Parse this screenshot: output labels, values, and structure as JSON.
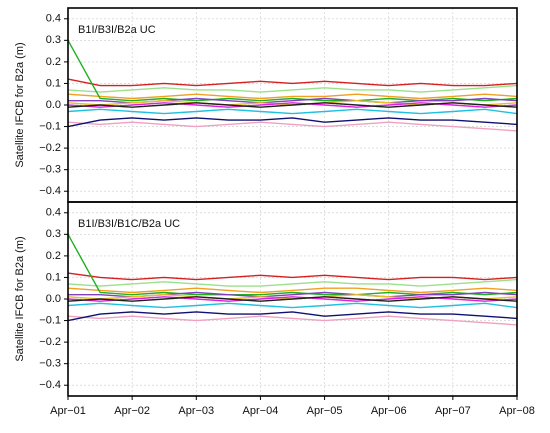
{
  "chart_data": [
    {
      "type": "line",
      "annotation": "B1I/B3I/B2a UC",
      "ylabel": "Satellite IFCB for B2a (m)",
      "x": [
        0,
        0.5,
        1,
        1.5,
        2,
        2.5,
        3,
        3.5,
        4,
        4.5,
        5,
        5.5,
        6,
        6.5,
        7
      ],
      "xlim": [
        0,
        7
      ],
      "ylim": [
        -0.45,
        0.45
      ],
      "yticks": [
        {
          "value": -0.4,
          "label": "−0.4"
        },
        {
          "value": -0.3,
          "label": "−0.3"
        },
        {
          "value": -0.2,
          "label": "−0.2"
        },
        {
          "value": -0.1,
          "label": "−0.1"
        },
        {
          "value": 0,
          "label": "0.0"
        },
        0.1,
        0.2,
        0.3,
        0.4
      ],
      "grid": true,
      "series": [
        {
          "color": "#d62020",
          "values": [
            0.12,
            0.09,
            0.09,
            0.1,
            0.09,
            0.1,
            0.11,
            0.1,
            0.11,
            0.1,
            0.09,
            0.1,
            0.09,
            0.09,
            0.1
          ]
        },
        {
          "color": "#9be08a",
          "values": [
            0.07,
            0.06,
            0.07,
            0.08,
            0.07,
            0.07,
            0.06,
            0.07,
            0.08,
            0.07,
            0.07,
            0.06,
            0.07,
            0.08,
            0.09
          ]
        },
        {
          "color": "#f0a020",
          "values": [
            0.05,
            0.04,
            0.03,
            0.04,
            0.05,
            0.04,
            0.03,
            0.04,
            0.04,
            0.05,
            0.04,
            0.03,
            0.04,
            0.05,
            0.04
          ]
        },
        {
          "color": "#20b020",
          "values": [
            0.3,
            0.03,
            0.02,
            0.03,
            0.02,
            0.03,
            0.02,
            0.03,
            0.02,
            0.02,
            0.03,
            0.02,
            0.03,
            0.02,
            0.03
          ]
        },
        {
          "color": "#8040c0",
          "values": [
            0.02,
            0.02,
            0.01,
            0.02,
            0.03,
            0.02,
            0.01,
            0.02,
            0.03,
            0.02,
            0.01,
            0.02,
            0.02,
            0.03,
            0.02
          ]
        },
        {
          "color": "#e8c020",
          "values": [
            0.01,
            0.0,
            0.01,
            0.02,
            0.01,
            0.0,
            0.01,
            0.0,
            0.01,
            0.02,
            0.01,
            0.0,
            0.01,
            0.0,
            0.01
          ]
        },
        {
          "color": "#e020e0",
          "values": [
            0.0,
            -0.01,
            0.0,
            0.01,
            0.0,
            -0.01,
            0.0,
            0.01,
            0.0,
            -0.01,
            0.0,
            0.01,
            0.0,
            -0.01,
            0.0
          ]
        },
        {
          "color": "#202020",
          "values": [
            -0.01,
            0.0,
            -0.01,
            0.0,
            0.01,
            0.0,
            -0.01,
            0.0,
            0.01,
            0.0,
            -0.01,
            0.0,
            0.01,
            0.0,
            -0.01
          ]
        },
        {
          "color": "#20c0e0",
          "values": [
            -0.03,
            -0.02,
            -0.03,
            -0.04,
            -0.03,
            -0.02,
            -0.03,
            -0.04,
            -0.03,
            -0.02,
            -0.03,
            -0.04,
            -0.03,
            -0.02,
            -0.04
          ]
        },
        {
          "color": "#f0a0c0",
          "values": [
            -0.08,
            -0.09,
            -0.08,
            -0.09,
            -0.1,
            -0.09,
            -0.08,
            -0.09,
            -0.1,
            -0.09,
            -0.08,
            -0.09,
            -0.1,
            -0.11,
            -0.12
          ]
        },
        {
          "color": "#101070",
          "values": [
            -0.1,
            -0.07,
            -0.06,
            -0.07,
            -0.06,
            -0.07,
            -0.07,
            -0.06,
            -0.08,
            -0.07,
            -0.06,
            -0.07,
            -0.07,
            -0.08,
            -0.09
          ]
        }
      ]
    },
    {
      "type": "line",
      "annotation": "B1I/B3I/B1C/B2a UC",
      "ylabel": "Satellite IFCB for B2a (m)",
      "x": [
        0,
        0.5,
        1,
        1.5,
        2,
        2.5,
        3,
        3.5,
        4,
        4.5,
        5,
        5.5,
        6,
        6.5,
        7
      ],
      "xlim": [
        0,
        7
      ],
      "ylim": [
        -0.45,
        0.45
      ],
      "xticks": [
        {
          "value": 0,
          "label": "Apr−01"
        },
        {
          "value": 1,
          "label": "Apr−02"
        },
        {
          "value": 2,
          "label": "Apr−03"
        },
        {
          "value": 3,
          "label": "Apr−04"
        },
        {
          "value": 4,
          "label": "Apr−05"
        },
        {
          "value": 5,
          "label": "Apr−06"
        },
        {
          "value": 6,
          "label": "Apr−07"
        },
        {
          "value": 7,
          "label": "Apr−08"
        }
      ],
      "yticks": [
        {
          "value": -0.4,
          "label": "−0.4"
        },
        {
          "value": -0.3,
          "label": "−0.3"
        },
        {
          "value": -0.2,
          "label": "−0.2"
        },
        {
          "value": -0.1,
          "label": "−0.1"
        },
        {
          "value": 0,
          "label": "0.0"
        },
        0.1,
        0.2,
        0.3,
        0.4
      ],
      "grid": true,
      "series": [
        {
          "color": "#d62020",
          "values": [
            0.12,
            0.1,
            0.09,
            0.1,
            0.09,
            0.1,
            0.11,
            0.1,
            0.11,
            0.1,
            0.09,
            0.1,
            0.1,
            0.09,
            0.1
          ]
        },
        {
          "color": "#9be08a",
          "values": [
            0.07,
            0.06,
            0.07,
            0.08,
            0.07,
            0.06,
            0.06,
            0.07,
            0.08,
            0.07,
            0.07,
            0.06,
            0.07,
            0.08,
            0.09
          ]
        },
        {
          "color": "#f0a020",
          "values": [
            0.05,
            0.04,
            0.03,
            0.04,
            0.05,
            0.04,
            0.03,
            0.04,
            0.05,
            0.05,
            0.04,
            0.03,
            0.04,
            0.05,
            0.04
          ]
        },
        {
          "color": "#20b020",
          "values": [
            0.3,
            0.03,
            0.02,
            0.03,
            0.02,
            0.02,
            0.02,
            0.03,
            0.02,
            0.02,
            0.03,
            0.02,
            0.03,
            0.02,
            0.03
          ]
        },
        {
          "color": "#8040c0",
          "values": [
            0.02,
            0.02,
            0.01,
            0.02,
            0.03,
            0.02,
            0.01,
            0.02,
            0.03,
            0.02,
            0.01,
            0.02,
            0.02,
            0.03,
            0.02
          ]
        },
        {
          "color": "#e8c020",
          "values": [
            0.01,
            0.0,
            0.01,
            0.02,
            0.01,
            0.0,
            0.01,
            0.0,
            0.01,
            0.02,
            0.01,
            0.0,
            0.01,
            0.0,
            0.01
          ]
        },
        {
          "color": "#e020e0",
          "values": [
            0.0,
            -0.01,
            0.0,
            0.01,
            0.0,
            -0.01,
            0.0,
            0.01,
            0.0,
            -0.01,
            0.0,
            0.01,
            0.0,
            -0.01,
            0.0
          ]
        },
        {
          "color": "#202020",
          "values": [
            -0.01,
            0.0,
            -0.01,
            0.0,
            0.01,
            0.0,
            -0.01,
            0.0,
            0.01,
            0.0,
            -0.01,
            0.0,
            0.01,
            0.0,
            -0.01
          ]
        },
        {
          "color": "#20c0e0",
          "values": [
            -0.03,
            -0.02,
            -0.03,
            -0.04,
            -0.03,
            -0.02,
            -0.03,
            -0.04,
            -0.03,
            -0.02,
            -0.03,
            -0.04,
            -0.03,
            -0.02,
            -0.04
          ]
        },
        {
          "color": "#f0a0c0",
          "values": [
            -0.08,
            -0.09,
            -0.08,
            -0.09,
            -0.1,
            -0.09,
            -0.08,
            -0.09,
            -0.1,
            -0.09,
            -0.08,
            -0.09,
            -0.1,
            -0.11,
            -0.12
          ]
        },
        {
          "color": "#101070",
          "values": [
            -0.1,
            -0.07,
            -0.06,
            -0.07,
            -0.06,
            -0.07,
            -0.07,
            -0.06,
            -0.08,
            -0.07,
            -0.06,
            -0.07,
            -0.07,
            -0.08,
            -0.09
          ]
        }
      ]
    }
  ]
}
